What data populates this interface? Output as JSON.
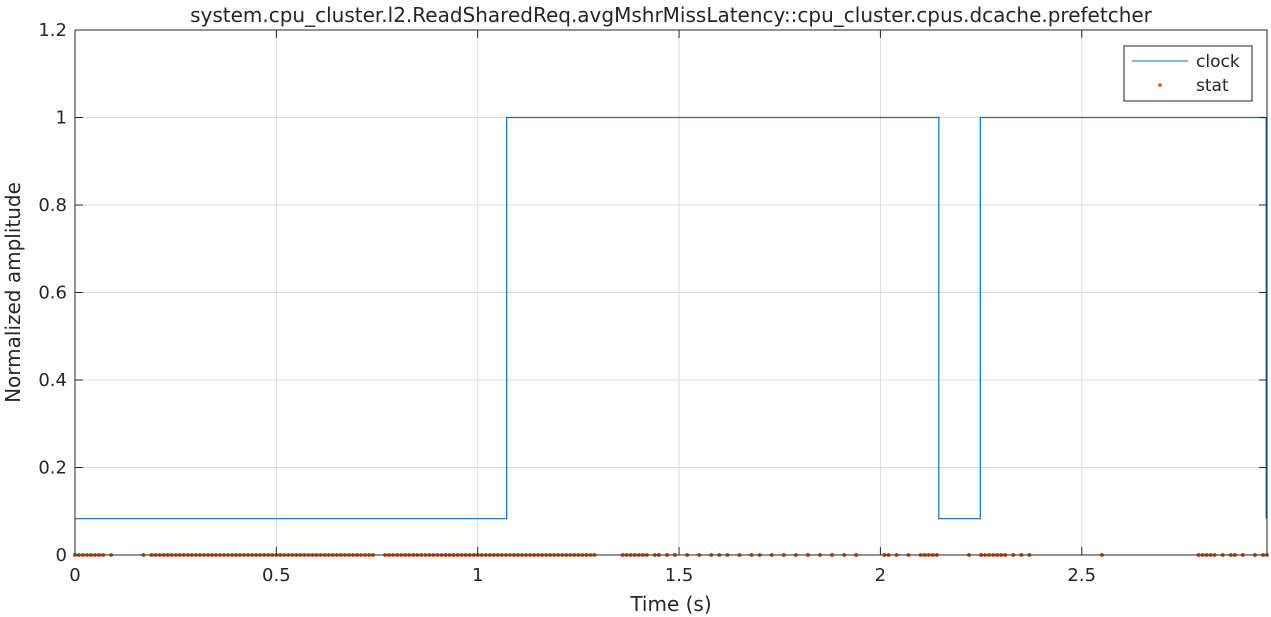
{
  "chart_data": {
    "type": "line",
    "title": "system.cpu_cluster.l2.ReadSharedReq.avgMshrMissLatency::cpu_cluster.cpus.dcache.prefetcher",
    "xlabel": "Time (s)",
    "ylabel": "Normalized amplitude",
    "xlim": [
      0,
      2.96
    ],
    "ylim": [
      0,
      1.2
    ],
    "xticks": [
      0,
      0.5,
      1,
      1.5,
      2,
      2.5
    ],
    "xtick_labels": [
      "0",
      "0.5",
      "1",
      "1.5",
      "2",
      "2.5"
    ],
    "yticks": [
      0,
      0.2,
      0.4,
      0.6,
      0.8,
      1,
      1.2
    ],
    "ytick_labels": [
      "0",
      "0.2",
      "0.4",
      "0.6",
      "0.8",
      "1",
      "1.2"
    ],
    "grid": true,
    "legend": "top-right",
    "series": [
      {
        "name": "clock",
        "style": "step-line",
        "color": "#0072BD",
        "x": [
          0,
          1.072,
          1.072,
          2.145,
          2.145,
          2.248,
          2.248,
          2.958,
          2.958
        ],
        "y": [
          0.083,
          0.083,
          1,
          1,
          0.083,
          0.083,
          1,
          1,
          0.083
        ]
      },
      {
        "name": "stat",
        "style": "dots",
        "color": "#D95319",
        "x": [
          0.0,
          0.01,
          0.02,
          0.03,
          0.04,
          0.05,
          0.06,
          0.07,
          0.09,
          0.17,
          0.19,
          0.2,
          0.21,
          0.22,
          0.23,
          0.24,
          0.25,
          0.26,
          0.27,
          0.28,
          0.29,
          0.3,
          0.31,
          0.32,
          0.33,
          0.34,
          0.35,
          0.36,
          0.37,
          0.38,
          0.39,
          0.4,
          0.41,
          0.42,
          0.43,
          0.44,
          0.45,
          0.46,
          0.47,
          0.48,
          0.49,
          0.5,
          0.51,
          0.52,
          0.53,
          0.54,
          0.55,
          0.56,
          0.57,
          0.58,
          0.59,
          0.6,
          0.61,
          0.62,
          0.63,
          0.64,
          0.65,
          0.66,
          0.67,
          0.68,
          0.69,
          0.7,
          0.71,
          0.72,
          0.73,
          0.74,
          0.77,
          0.78,
          0.79,
          0.8,
          0.81,
          0.82,
          0.83,
          0.84,
          0.85,
          0.86,
          0.87,
          0.88,
          0.89,
          0.9,
          0.91,
          0.92,
          0.93,
          0.94,
          0.95,
          0.96,
          0.97,
          0.98,
          0.99,
          1.0,
          1.01,
          1.02,
          1.03,
          1.04,
          1.05,
          1.06,
          1.07,
          1.08,
          1.09,
          1.1,
          1.11,
          1.12,
          1.13,
          1.14,
          1.15,
          1.16,
          1.17,
          1.18,
          1.19,
          1.2,
          1.21,
          1.22,
          1.23,
          1.24,
          1.25,
          1.26,
          1.27,
          1.28,
          1.29,
          1.36,
          1.37,
          1.38,
          1.39,
          1.4,
          1.41,
          1.42,
          1.44,
          1.45,
          1.47,
          1.49,
          1.52,
          1.55,
          1.58,
          1.6,
          1.62,
          1.65,
          1.68,
          1.7,
          1.73,
          1.76,
          1.79,
          1.82,
          1.85,
          1.88,
          1.91,
          1.94,
          2.01,
          2.02,
          2.04,
          2.07,
          2.1,
          2.11,
          2.12,
          2.13,
          2.14,
          2.22,
          2.25,
          2.26,
          2.27,
          2.28,
          2.29,
          2.3,
          2.31,
          2.33,
          2.35,
          2.37,
          2.55,
          2.79,
          2.8,
          2.81,
          2.82,
          2.83,
          2.85,
          2.87,
          2.88,
          2.9,
          2.93,
          2.95,
          2.96
        ],
        "y_value": 0
      }
    ]
  }
}
